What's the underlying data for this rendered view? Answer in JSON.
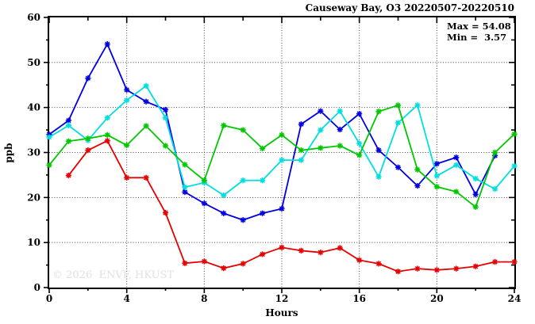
{
  "title": "Causeway Bay, O3 20220507-20220510",
  "stats": {
    "max_label": "Max = 54.08",
    "min_label": "Min =  3.57"
  },
  "axes": {
    "ylabel": "ppb",
    "xlabel": "Hours"
  },
  "watermark": "© 2026  ENVF, HKUST",
  "colors": {
    "frame": "#000000",
    "grid": "#444444",
    "watermark_gray": "#e1e1e1"
  },
  "chart_data": {
    "type": "line",
    "title": "Causeway Bay, O3 20220507-20220510",
    "xlabel": "Hours",
    "ylabel": "ppb",
    "xlim": [
      0,
      24
    ],
    "ylim": [
      0,
      60
    ],
    "x_ticks": [
      0,
      4,
      8,
      12,
      16,
      20,
      24
    ],
    "x_minor_step": 2,
    "y_ticks": [
      0,
      10,
      20,
      30,
      40,
      50,
      60
    ],
    "y_minor_step": 5,
    "grid": "dotted-at-major-ticks",
    "legend_position": "none",
    "annotations": {
      "max": 54.08,
      "min": 3.57
    },
    "x": [
      0,
      1,
      2,
      3,
      4,
      5,
      6,
      7,
      8,
      9,
      10,
      11,
      12,
      13,
      14,
      15,
      16,
      17,
      18,
      19,
      20,
      21,
      22,
      23,
      24
    ],
    "series": [
      {
        "name": "day-blue",
        "color": "#0000e6",
        "marker": "asterisk",
        "values": [
          34.0,
          37.1,
          46.5,
          54.08,
          43.9,
          41.3,
          39.5,
          21.2,
          18.7,
          16.5,
          15.0,
          16.5,
          17.5,
          36.3,
          39.2,
          35.1,
          38.6,
          30.5,
          26.7,
          22.6,
          27.5,
          28.9,
          20.7,
          29.3,
          null
        ]
      },
      {
        "name": "day-cyan",
        "color": "#00dede",
        "marker": "asterisk",
        "values": [
          33.4,
          36.0,
          32.7,
          37.7,
          41.6,
          44.8,
          37.7,
          22.3,
          23.3,
          20.5,
          23.8,
          23.8,
          28.3,
          28.3,
          35.0,
          39.2,
          32.0,
          24.6,
          36.6,
          40.5,
          24.8,
          27.2,
          24.2,
          21.9,
          27.0
        ]
      },
      {
        "name": "day-green",
        "color": "#00c800",
        "marker": "asterisk",
        "values": [
          27.2,
          32.5,
          33.1,
          33.9,
          31.6,
          35.9,
          31.5,
          27.3,
          23.8,
          36.0,
          35.0,
          30.9,
          33.9,
          30.5,
          31.0,
          31.5,
          29.4,
          39.1,
          40.5,
          26.2,
          22.4,
          21.3,
          17.9,
          30.0,
          34.1
        ]
      },
      {
        "name": "day-red",
        "color": "#e60000",
        "marker": "asterisk",
        "values": [
          null,
          24.9,
          30.5,
          32.6,
          24.4,
          24.4,
          16.6,
          5.4,
          5.8,
          4.3,
          5.3,
          7.4,
          8.9,
          8.2,
          7.8,
          8.8,
          6.1,
          5.3,
          3.57,
          4.2,
          3.9,
          4.2,
          4.7,
          5.7,
          5.7
        ]
      }
    ]
  }
}
